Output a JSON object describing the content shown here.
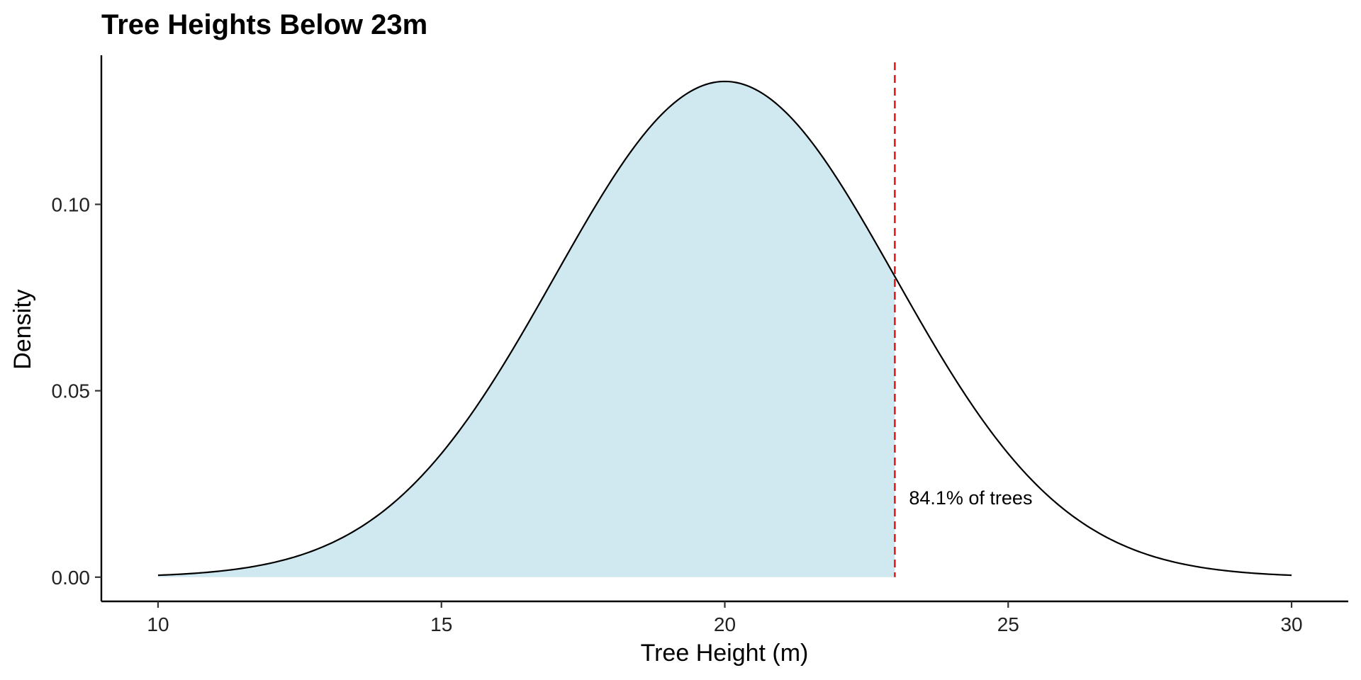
{
  "chart_data": {
    "type": "area",
    "title": "Tree Heights Below 23m",
    "xlabel": "Tree Height (m)",
    "ylabel": "Density",
    "xlim": [
      9,
      31
    ],
    "ylim": [
      -0.0065,
      0.14
    ],
    "x_ticks": [
      10,
      15,
      20,
      25,
      30
    ],
    "x_tick_labels": [
      "10",
      "15",
      "20",
      "25",
      "30"
    ],
    "y_ticks": [
      0.0,
      0.05,
      0.1
    ],
    "y_tick_labels": [
      "0.00",
      "0.05",
      "0.10"
    ],
    "distribution": "normal",
    "mean": 20,
    "sd": 3,
    "x_range": [
      10,
      30
    ],
    "series": [
      {
        "x": [
          10,
          11,
          12,
          13,
          14,
          15,
          16,
          17,
          18,
          19,
          20,
          21,
          22,
          23,
          24,
          25,
          26,
          27,
          28,
          29,
          30
        ],
        "y": [
          0.0005,
          0.0015,
          0.0038,
          0.0087,
          0.018,
          0.0332,
          0.0547,
          0.0807,
          0.1065,
          0.1258,
          0.133,
          0.1258,
          0.1065,
          0.0807,
          0.0547,
          0.0332,
          0.018,
          0.0087,
          0.0038,
          0.0015,
          0.0005
        ]
      }
    ],
    "shaded_region": {
      "from": 10,
      "to": 23,
      "color": "#add8e6"
    },
    "threshold": {
      "x": 23,
      "color": "#e41a1c",
      "style": "dashed"
    },
    "annotation": {
      "text": "84.1% of trees",
      "x": 23.25,
      "y": 0.0195
    },
    "grid": false,
    "legend": "none"
  }
}
